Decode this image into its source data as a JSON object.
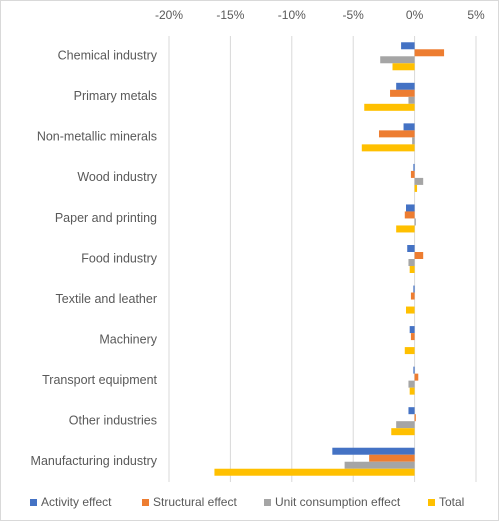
{
  "chart_data": {
    "type": "bar",
    "orientation": "horizontal",
    "categories": [
      "Chemical industry",
      "Primary metals",
      "Non-metallic minerals",
      "Wood industry",
      "Paper and printing",
      "Food industry",
      "Textile and leather",
      "Machinery",
      "Transport equipment",
      "Other industries",
      "Manufacturing industry"
    ],
    "series": [
      {
        "name": "Activity effect",
        "color": "#4472c4",
        "values": [
          -1.1,
          -1.5,
          -0.9,
          -0.1,
          -0.7,
          -0.6,
          -0.1,
          -0.4,
          -0.1,
          -0.5,
          -6.7
        ]
      },
      {
        "name": "Structural effect",
        "color": "#ed7d31",
        "values": [
          2.4,
          -2.0,
          -2.9,
          -0.3,
          -0.8,
          0.7,
          -0.3,
          -0.3,
          0.3,
          0.1,
          -3.7
        ]
      },
      {
        "name": "Unit consumption effect",
        "color": "#a5a5a5",
        "values": [
          -2.8,
          -0.5,
          -0.2,
          0.7,
          0.1,
          -0.5,
          0.0,
          0.0,
          -0.5,
          -1.5,
          -5.7
        ]
      },
      {
        "name": "Total",
        "color": "#ffc000",
        "values": [
          -1.8,
          -4.1,
          -4.3,
          0.2,
          -1.5,
          -0.4,
          -0.7,
          -0.8,
          -0.4,
          -1.9,
          -16.3
        ]
      }
    ],
    "xlim": [
      -20,
      5
    ],
    "xticks": [
      {
        "value": -20,
        "label": "-20%"
      },
      {
        "value": -15,
        "label": "-15%"
      },
      {
        "value": -10,
        "label": "-10%"
      },
      {
        "value": -5,
        "label": "-5%"
      },
      {
        "value": 0,
        "label": "0%"
      },
      {
        "value": 5,
        "label": "5%"
      }
    ],
    "grid": true,
    "legend": "bottom"
  }
}
